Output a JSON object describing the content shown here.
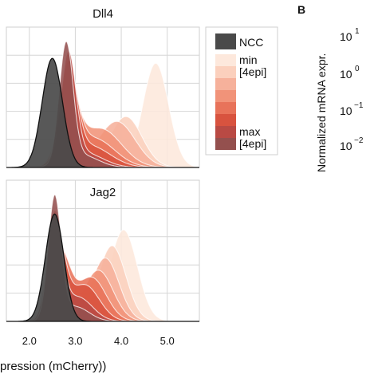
{
  "chart_data": {
    "type": "area",
    "x_axis": {
      "label": "pression (mCherry))",
      "ticks": [
        2.0,
        3.0,
        4.0,
        5.0
      ],
      "tick_labels": [
        "2.0",
        "3.0",
        "4.0",
        "5.0"
      ],
      "xlim": [
        1.5,
        5.7
      ]
    },
    "grid": true,
    "legend": {
      "placement": "right",
      "entries": [
        {
          "label": "NCC",
          "color": "#4a4a4a"
        },
        {
          "label": "min",
          "color": "#fde8dc"
        },
        {
          "label": "[4epi]",
          "color": "#fbd0bd"
        },
        {
          "label": "",
          "color": "#f6b19b"
        },
        {
          "label": "",
          "color": "#f19379"
        },
        {
          "label": "",
          "color": "#e8735a"
        },
        {
          "label": "",
          "color": "#d8533f"
        },
        {
          "label": "max",
          "color": "#b94a44"
        },
        {
          "label": "[4epi]",
          "color": "#94504e"
        }
      ]
    },
    "panels": [
      {
        "title": "Dll4",
        "series": [
          {
            "color": "#fde8dc",
            "peaks": [
              {
                "mu": 2.85,
                "sd": 0.22,
                "h": 0.18
              },
              {
                "mu": 4.75,
                "sd": 0.28,
                "h": 0.86
              }
            ]
          },
          {
            "color": "#fbd0bd",
            "peaks": [
              {
                "mu": 2.85,
                "sd": 0.24,
                "h": 0.3
              },
              {
                "mu": 4.1,
                "sd": 0.35,
                "h": 0.42
              }
            ]
          },
          {
            "color": "#f6b19b",
            "peaks": [
              {
                "mu": 2.85,
                "sd": 0.24,
                "h": 0.42
              },
              {
                "mu": 3.9,
                "sd": 0.4,
                "h": 0.38
              }
            ]
          },
          {
            "color": "#f19379",
            "peaks": [
              {
                "mu": 2.85,
                "sd": 0.22,
                "h": 0.55
              },
              {
                "mu": 3.55,
                "sd": 0.45,
                "h": 0.32
              }
            ]
          },
          {
            "color": "#e8735a",
            "peaks": [
              {
                "mu": 2.85,
                "sd": 0.2,
                "h": 0.66
              },
              {
                "mu": 3.4,
                "sd": 0.45,
                "h": 0.24
              }
            ]
          },
          {
            "color": "#d8533f",
            "peaks": [
              {
                "mu": 2.85,
                "sd": 0.18,
                "h": 0.78
              },
              {
                "mu": 3.3,
                "sd": 0.45,
                "h": 0.18
              }
            ]
          },
          {
            "color": "#b94a44",
            "peaks": [
              {
                "mu": 2.85,
                "sd": 0.16,
                "h": 0.88
              },
              {
                "mu": 3.2,
                "sd": 0.4,
                "h": 0.12
              }
            ]
          },
          {
            "color": "#94504e",
            "peaks": [
              {
                "mu": 2.8,
                "sd": 0.15,
                "h": 0.98
              },
              {
                "mu": 3.15,
                "sd": 0.35,
                "h": 0.1
              }
            ]
          },
          {
            "color": "#4a4a4a",
            "peaks": [
              {
                "mu": 2.5,
                "sd": 0.22,
                "h": 0.9
              }
            ]
          }
        ]
      },
      {
        "title": "Jag2",
        "series": [
          {
            "color": "#fde8dc",
            "peaks": [
              {
                "mu": 2.6,
                "sd": 0.2,
                "h": 0.18
              },
              {
                "mu": 4.05,
                "sd": 0.3,
                "h": 0.75
              }
            ]
          },
          {
            "color": "#fbd0bd",
            "peaks": [
              {
                "mu": 2.6,
                "sd": 0.2,
                "h": 0.28
              },
              {
                "mu": 3.8,
                "sd": 0.3,
                "h": 0.62
              }
            ]
          },
          {
            "color": "#f6b19b",
            "peaks": [
              {
                "mu": 2.6,
                "sd": 0.2,
                "h": 0.38
              },
              {
                "mu": 3.65,
                "sd": 0.3,
                "h": 0.52
              }
            ]
          },
          {
            "color": "#f19379",
            "peaks": [
              {
                "mu": 2.6,
                "sd": 0.2,
                "h": 0.48
              },
              {
                "mu": 3.5,
                "sd": 0.32,
                "h": 0.42
              }
            ]
          },
          {
            "color": "#e8735a",
            "peaks": [
              {
                "mu": 2.65,
                "sd": 0.22,
                "h": 0.58
              },
              {
                "mu": 3.35,
                "sd": 0.32,
                "h": 0.36
              }
            ]
          },
          {
            "color": "#d8533f",
            "peaks": [
              {
                "mu": 2.6,
                "sd": 0.18,
                "h": 0.66
              },
              {
                "mu": 3.2,
                "sd": 0.32,
                "h": 0.3
              }
            ]
          },
          {
            "color": "#b94a44",
            "peaks": [
              {
                "mu": 2.55,
                "sd": 0.16,
                "h": 0.85
              },
              {
                "mu": 3.05,
                "sd": 0.32,
                "h": 0.2
              }
            ]
          },
          {
            "color": "#94504e",
            "peaks": [
              {
                "mu": 2.55,
                "sd": 0.14,
                "h": 1.0
              },
              {
                "mu": 3.0,
                "sd": 0.3,
                "h": 0.12
              }
            ]
          },
          {
            "color": "#4a4a4a",
            "peaks": [
              {
                "mu": 2.55,
                "sd": 0.2,
                "h": 0.88
              }
            ]
          }
        ]
      }
    ]
  },
  "panel_b": {
    "letter": "B",
    "ylabel": "Normalized mRNA expr.",
    "ticks": [
      {
        "base": "10",
        "exp": "1"
      },
      {
        "base": "10",
        "exp": "0"
      },
      {
        "base": "10",
        "exp": "−1"
      },
      {
        "base": "10",
        "exp": "−2"
      }
    ]
  }
}
